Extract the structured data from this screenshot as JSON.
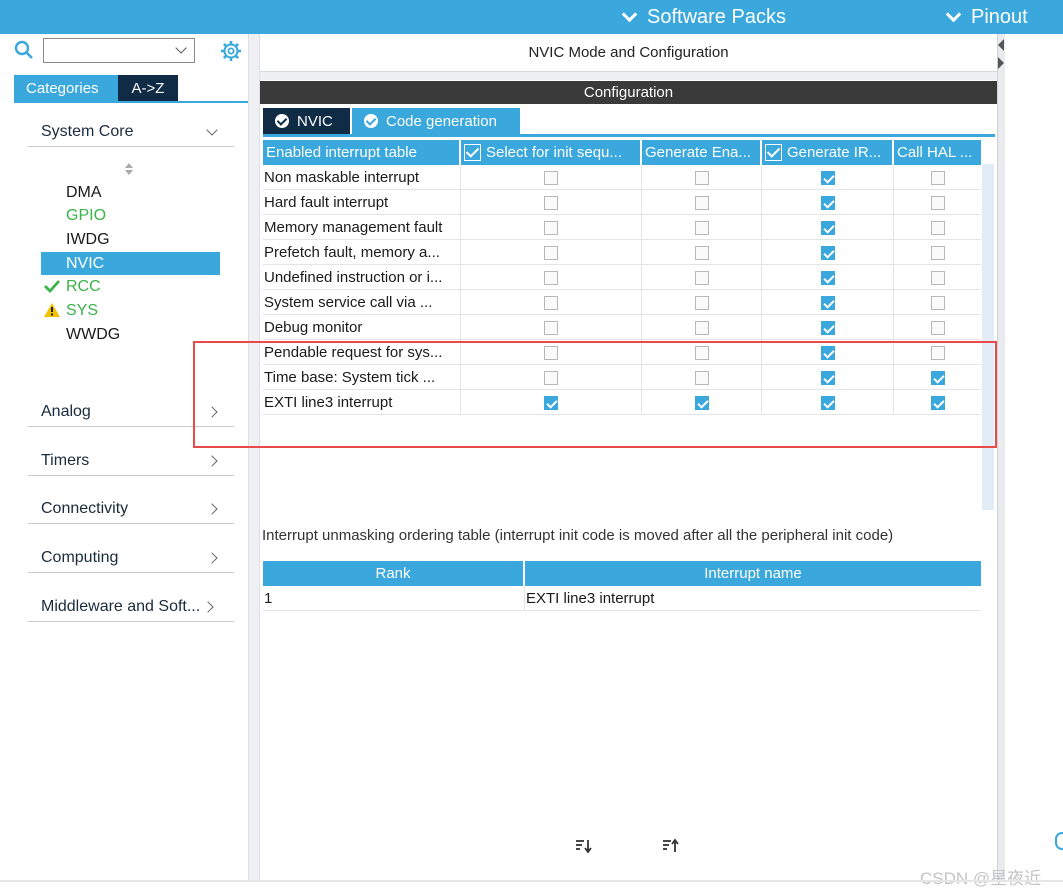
{
  "top_bar": {
    "software_packs_label": "Software Packs",
    "pinout_label": "Pinout"
  },
  "sidebar": {
    "search": {
      "value": "",
      "placeholder": ""
    },
    "tabs": [
      {
        "label": "Categories",
        "active": true
      },
      {
        "label": "A->Z",
        "active": false
      }
    ],
    "categories": [
      {
        "label": "System Core",
        "expanded": true
      },
      {
        "label": "Analog",
        "expanded": false
      },
      {
        "label": "Timers",
        "expanded": false
      },
      {
        "label": "Connectivity",
        "expanded": false
      },
      {
        "label": "Computing",
        "expanded": false
      },
      {
        "label": "Middleware and Soft...",
        "expanded": false
      }
    ],
    "peripherals": [
      {
        "label": "DMA",
        "state": "normal"
      },
      {
        "label": "GPIO",
        "state": "configured"
      },
      {
        "label": "IWDG",
        "state": "normal"
      },
      {
        "label": "NVIC",
        "state": "selected"
      },
      {
        "label": "RCC",
        "state": "ok"
      },
      {
        "label": "SYS",
        "state": "warning"
      },
      {
        "label": "WWDG",
        "state": "normal"
      }
    ]
  },
  "main": {
    "title": "NVIC Mode and Configuration",
    "config_label": "Configuration",
    "config_tabs": [
      {
        "label": "NVIC",
        "active": true
      },
      {
        "label": "Code generation",
        "active": false
      }
    ],
    "table": {
      "headers": [
        "Enabled interrupt table",
        "Select for init sequ...",
        "Generate Ena...",
        "Generate IR...",
        "Call HAL ..."
      ],
      "header_checked": [
        false,
        true,
        false,
        true,
        false
      ],
      "rows": [
        {
          "name": "Non maskable interrupt",
          "checks": [
            false,
            false,
            true,
            false
          ]
        },
        {
          "name": "Hard fault interrupt",
          "checks": [
            false,
            false,
            true,
            false
          ]
        },
        {
          "name": "Memory management fault",
          "checks": [
            false,
            false,
            true,
            false
          ]
        },
        {
          "name": "Prefetch fault, memory a...",
          "checks": [
            false,
            false,
            true,
            false
          ]
        },
        {
          "name": "Undefined instruction or i...",
          "checks": [
            false,
            false,
            true,
            false
          ]
        },
        {
          "name": "System service call via ...",
          "checks": [
            false,
            false,
            true,
            false
          ]
        },
        {
          "name": "Debug monitor",
          "checks": [
            false,
            false,
            true,
            false
          ]
        },
        {
          "name": "Pendable request for sys...",
          "checks": [
            false,
            false,
            true,
            false
          ]
        },
        {
          "name": "Time base: System tick ...",
          "checks": [
            false,
            false,
            true,
            true
          ]
        },
        {
          "name": "EXTI line3 interrupt",
          "checks": [
            true,
            true,
            true,
            true
          ]
        }
      ]
    },
    "order_caption": "Interrupt unmasking ordering table (interrupt init code is moved after all the peripheral init code)",
    "order_table": {
      "headers": [
        "Rank",
        "Interrupt name"
      ],
      "rows": [
        {
          "rank": "1",
          "name": "EXTI line3 interrupt"
        }
      ]
    }
  },
  "watermark": "CSDN @星夜近",
  "colors": {
    "accent": "#3aa8dc",
    "dark_tab": "#0f2b46",
    "config_bar": "#3a3a3a",
    "highlight_box": "#e84a4a",
    "ok_green": "#3bb24a",
    "warning_yellow": "#f2c200"
  }
}
